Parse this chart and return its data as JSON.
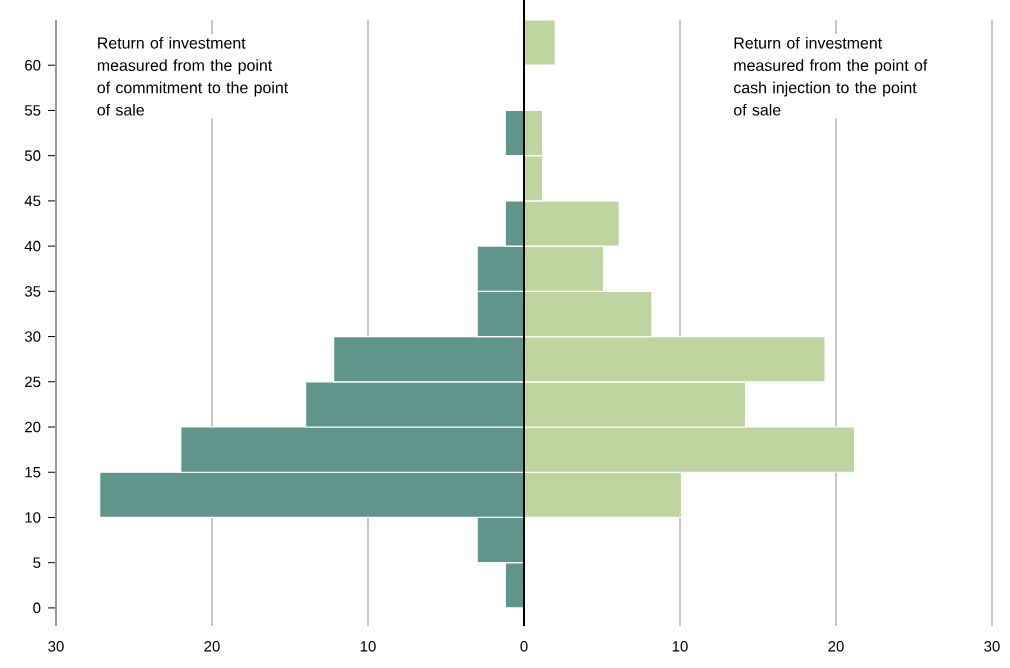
{
  "chart_data": {
    "type": "bar",
    "orientation": "horizontal",
    "x": [
      2.5,
      7.5,
      12.5,
      17.5,
      22.5,
      27.5,
      32.5,
      37.5,
      42.5,
      47.5,
      52.5,
      57.5,
      62.5
    ],
    "series": [
      {
        "color": "#5f958a",
        "values": [
          -1.2,
          -3,
          -27.2,
          -22,
          -14,
          -12.2,
          -3,
          -3,
          -1.2,
          null,
          -1.2,
          null,
          null
        ]
      },
      {
        "color": "#bed5a0",
        "values": [
          null,
          null,
          10.1,
          21.2,
          14.2,
          19.3,
          8.2,
          5.1,
          6.1,
          1.2,
          1.2,
          null,
          2
        ]
      }
    ],
    "xlim": [
      -30,
      30
    ],
    "xticks": [
      {
        "value": -30,
        "label": "30"
      },
      {
        "value": -20,
        "label": "20"
      },
      {
        "value": -10,
        "label": "10"
      },
      0,
      10,
      20,
      30
    ],
    "ylim": [
      -2,
      65
    ],
    "yticks": [
      0,
      5,
      10,
      15,
      20,
      25,
      30,
      35,
      40,
      45,
      50,
      55,
      60
    ],
    "grid": "x",
    "stacked": true,
    "ref_lines": [
      {
        "axis": "x",
        "value": 0,
        "color": "#000000"
      }
    ],
    "annotations": [
      "Return of investment measured from the point of commitment to the point of sale",
      "Return of investment measured from the point of cash injection to the point of sale"
    ]
  }
}
